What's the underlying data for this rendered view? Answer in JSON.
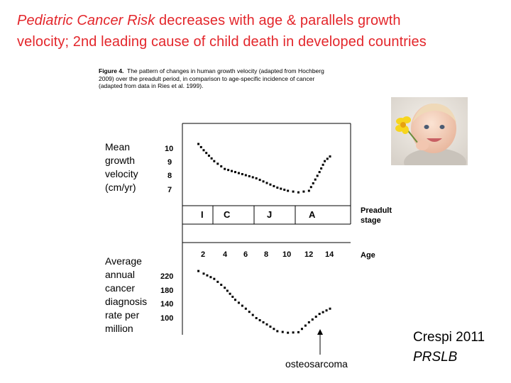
{
  "slide": {
    "title_italic_1": "Pediatric Cancer Risk",
    "title_plain_1": " decreases with age & parallels growth",
    "title_plain_2": "velocity; 2nd leading cause of child death in developed countries",
    "credit_line1": "Crespi 2011",
    "credit_line2": "PRSLB",
    "annotation": "osteosarcoma"
  },
  "figure": {
    "caption_label": "Figure 4.",
    "caption_line1": "The pattern of changes in human growth velocity (adapted from Hochberg",
    "caption_line2": "2009) over the preadult period, in comparison to age-specific incidence of cancer",
    "caption_line3": "(adapted from data in Ries et al. 1999).",
    "growth_label": [
      "Mean",
      "growth",
      "velocity",
      "(cm/yr)"
    ],
    "growth_ticks": [
      "10",
      "9",
      "8",
      "7"
    ],
    "cancer_label": [
      "Average",
      "annual",
      "cancer",
      "diagnosis",
      "rate per",
      "million"
    ],
    "cancer_ticks": [
      "220",
      "180",
      "140",
      "100"
    ],
    "stages": [
      "I",
      "C",
      "J",
      "A"
    ],
    "stage_label_1": "Preadult",
    "stage_label_2": "stage",
    "ages": [
      "2",
      "4",
      "6",
      "8",
      "10",
      "12",
      "14"
    ],
    "age_label": "Age",
    "image_alt": "smiling baby holding a yellow flower"
  },
  "chart_data": [
    {
      "type": "line",
      "title": "Mean growth velocity (cm/yr)",
      "xlabel": "Age",
      "ylabel": "Mean growth velocity (cm/yr)",
      "ylim": [
        6.5,
        10.5
      ],
      "x": [
        1.5,
        2,
        3,
        4,
        5,
        6,
        7,
        8,
        9,
        10,
        11,
        12,
        13,
        13.5,
        14
      ],
      "values": [
        10.0,
        9.6,
        8.9,
        8.4,
        8.2,
        8.0,
        7.8,
        7.5,
        7.2,
        7.0,
        6.9,
        7.0,
        8.2,
        8.9,
        9.2
      ],
      "style": "dotted"
    },
    {
      "type": "line",
      "title": "Average annual cancer diagnosis rate per million",
      "xlabel": "Age",
      "ylabel": "Average annual cancer diagnosis rate per million",
      "ylim": [
        80,
        240
      ],
      "x": [
        1.5,
        2,
        3,
        4,
        5,
        6,
        7,
        8,
        9,
        10,
        11,
        12,
        13,
        14
      ],
      "values": [
        210,
        205,
        195,
        178,
        155,
        138,
        120,
        108,
        95,
        92,
        93,
        112,
        128,
        138
      ],
      "style": "dotted"
    }
  ]
}
